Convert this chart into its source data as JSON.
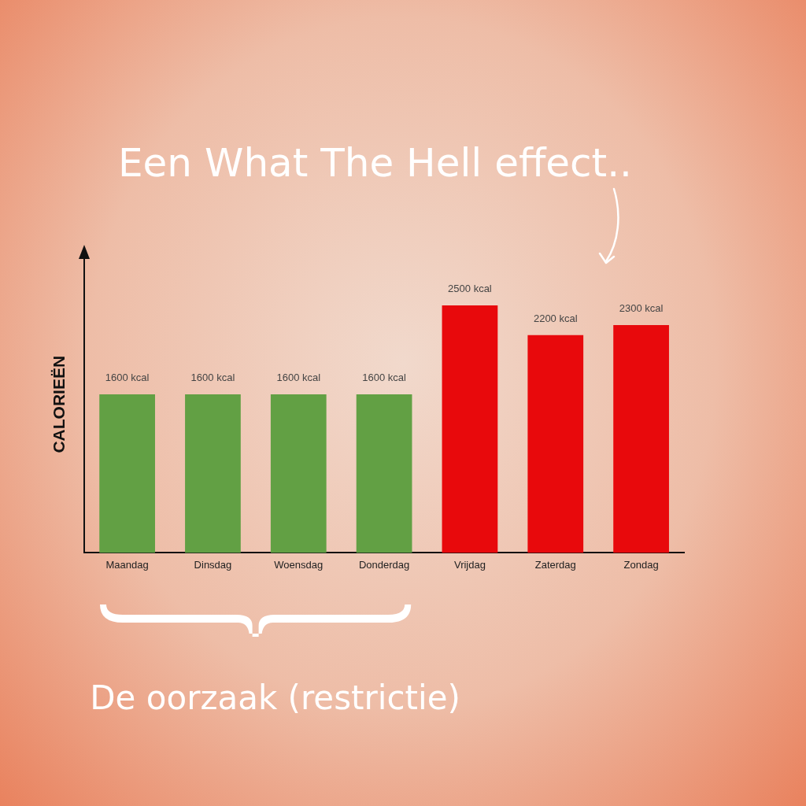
{
  "chart_data": {
    "type": "bar",
    "title": "Een What The Hell effect..",
    "ylabel": "CALORIEËN",
    "categories": [
      "Maandag",
      "Dinsdag",
      "Woensdag",
      "Donderdag",
      "Vrijdag",
      "Zaterdag",
      "Zondag"
    ],
    "values": [
      1600,
      1600,
      1600,
      1600,
      2500,
      2200,
      2300
    ],
    "colors": [
      "#62a044",
      "#62a044",
      "#62a044",
      "#62a044",
      "#e8090c",
      "#e8090c",
      "#e8090c"
    ],
    "value_labels": [
      "1600 kcal",
      "1600 kcal",
      "1600 kcal",
      "1600 kcal",
      "2500 kcal",
      "2200 kcal",
      "2300 kcal"
    ],
    "annotations": [
      "De oorzaak (restrictie)"
    ],
    "grid": false,
    "legend": false
  }
}
